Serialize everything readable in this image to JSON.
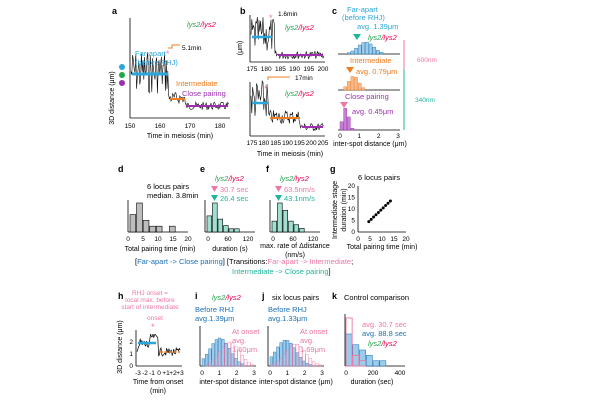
{
  "colors": {
    "far_apart": "#29a6dc",
    "intermediate": "#ef7d22",
    "close_pairing": "#9b2fae",
    "lys2_a": "#22a64a",
    "lys2_b": "#e4004f",
    "pink": "#ee77a5",
    "teal": "#1fb59d",
    "dark_blue": "#1b6fb5"
  },
  "genotype": {
    "part1": "lys2",
    "part2": "/lys2"
  },
  "panels": {
    "a": {
      "label": "a",
      "xlabel": "Time in meiosis (min)",
      "ylabel": "3D distance (μm)",
      "xticks": [
        "150",
        "160",
        "170",
        "180"
      ],
      "state_far": "Far-apart",
      "state_far2": "(before RHJ)",
      "state_int": "Intermediate",
      "state_close": "Close pairing",
      "duration": "5.1min"
    },
    "b": {
      "label": "b",
      "ylabel": "(μm)",
      "top_xticks": [
        "175",
        "180",
        "185",
        "190",
        "195",
        "200"
      ],
      "bottom_xticks": [
        "175",
        "180",
        "185",
        "190",
        "195",
        "200",
        "205"
      ],
      "xlabel": "Time in meiosis (min)",
      "top_duration": "1.6min",
      "bottom_duration": "17min"
    },
    "c": {
      "label": "c",
      "title": "Far-apart",
      "title2": "(before RHJ)",
      "avg_far": "avg. 1.39μm",
      "avg_int": "avg. 0.79μm",
      "avg_close": "avg. 0.45μm",
      "int_label": "Intermediate",
      "close_label": "Close pairing",
      "dist1": "600nm",
      "dist2": "340nm",
      "xticks": [
        "0",
        "1",
        "2",
        "3"
      ],
      "xlabel": "inter-spot distance (μm)"
    },
    "d": {
      "label": "d",
      "text1": "6 locus pairs",
      "text2": "median. 3.8min",
      "xticks": [
        "0",
        "5",
        "10",
        "15",
        "20"
      ],
      "xlabel": "Total pairing time (min)"
    },
    "e": {
      "label": "e",
      "stat1": "30.7 sec",
      "stat2": "26.4 sec",
      "xticks": [
        "0",
        "60",
        "120"
      ],
      "xlabel": "duration (s)"
    },
    "f": {
      "label": "f",
      "stat1": "63.5nm/s",
      "stat2": "43.1nm/s",
      "xticks": [
        "0",
        "60",
        "120"
      ],
      "xlabel1": "max. rate of Δdistance",
      "xlabel2": "(nm/s)"
    },
    "g": {
      "label": "g",
      "title": "6 locus pairs",
      "ylabel1": "Intermediate stage",
      "ylabel2": "duration  (min)",
      "xticks": [
        "0",
        "5",
        "10",
        "15",
        "20"
      ],
      "yticks": [
        "0",
        "5",
        "10",
        "15",
        "20"
      ],
      "xlabel": "Total pairing time (min)"
    },
    "h": {
      "label": "h",
      "note1": "RHJ onset =",
      "note2": "local max. before",
      "note3": "start of intermediate",
      "onset": "onset",
      "ylabel": "3D distance (μm)",
      "yticks": [
        "0",
        "1",
        "2"
      ],
      "xticks": [
        "-3",
        "-2",
        "-1",
        "0",
        "+1",
        "+2",
        "+3"
      ],
      "xlabel1": "Time from onset",
      "xlabel2": "(min)"
    },
    "i": {
      "label": "i",
      "before": "Before RHJ",
      "avg_before": "avg.1.39μm",
      "at_onset": "At onset",
      "avg_onset": "avg.",
      "avg_onset2": "1.60μm",
      "xticks": [
        "0",
        "1",
        "2",
        "3"
      ],
      "xlabel": "inter-spot distance"
    },
    "j": {
      "label": "j",
      "title": "six locus pairs",
      "before": "Before RHJ",
      "avg_before": "avg.1.33μm",
      "at_onset": "At onset",
      "avg_onset": "avg.",
      "avg_onset2": "1.69μm",
      "xticks": [
        "0",
        "1",
        "2",
        "3"
      ],
      "xlabel": "inter-spot distance (μm)"
    },
    "k": {
      "label": "k",
      "title": "Control comparison",
      "avg1": "avg. 30.7 sec",
      "avg2": "avg. 88.8 sec",
      "xticks": [
        "0",
        "200",
        "400"
      ],
      "xlabel": "duration (sec)"
    }
  },
  "legend": {
    "open": "[",
    "far_close": "Far-apart -> Close pairing",
    "mid": "] [Transitions:",
    "far_int": "Far-apart -> Intermediate",
    "semi": ";",
    "int_close": "Intermediate -> Close pairing",
    "close": "]"
  },
  "chart_data": [
    {
      "panel": "d",
      "type": "bar",
      "categories": [
        "0-2.5",
        "2.5-5",
        "5-7.5",
        "7.5-10",
        "10-12.5",
        "12.5-15",
        "15-17.5"
      ],
      "values": [
        3,
        5,
        2,
        1,
        1,
        0,
        1
      ],
      "xlabel": "Total pairing time (min)",
      "xlim": [
        0,
        20
      ]
    },
    {
      "panel": "e",
      "type": "bar",
      "categories": [
        "0-15",
        "15-30",
        "30-45",
        "45-60",
        "60-75",
        "75-90"
      ],
      "values": [
        5,
        9,
        4,
        2,
        1,
        1
      ],
      "xlabel": "duration (s)",
      "xlim": [
        0,
        120
      ]
    },
    {
      "panel": "f",
      "type": "bar",
      "categories": [
        "0-15",
        "15-30",
        "30-45",
        "45-60",
        "60-75",
        "75-90"
      ],
      "values": [
        3,
        8,
        6,
        3,
        2,
        1
      ],
      "xlabel": "max. rate of Δdistance (nm/s)",
      "xlim": [
        0,
        120
      ]
    },
    {
      "panel": "g",
      "type": "scatter",
      "x": [
        4.5,
        5.5,
        6.5,
        7.5,
        8.5,
        9.5,
        10.5,
        11.5,
        12.5,
        13.5
      ],
      "y": [
        4.5,
        5.5,
        6.5,
        7.5,
        8.5,
        9.5,
        10.5,
        11.5,
        12.5,
        13.5
      ],
      "xlabel": "Total pairing time (min)",
      "ylabel": "Intermediate stage duration (min)",
      "xlim": [
        0,
        20
      ],
      "ylim": [
        0,
        20
      ]
    },
    {
      "panel": "k",
      "type": "bar",
      "categories": [
        "0-50",
        "50-100",
        "100-150",
        "150-200",
        "200-250",
        "250-300",
        "300-350",
        "350-400"
      ],
      "series": [
        {
          "name": "avg. 30.7 sec",
          "values": [
            9,
            2,
            1,
            0,
            0,
            0,
            0,
            0
          ]
        },
        {
          "name": "avg. 88.8 sec",
          "values": [
            6,
            4,
            3,
            2,
            1,
            1,
            0,
            0
          ]
        }
      ],
      "xlabel": "duration (sec)",
      "xlim": [
        0,
        400
      ]
    }
  ]
}
